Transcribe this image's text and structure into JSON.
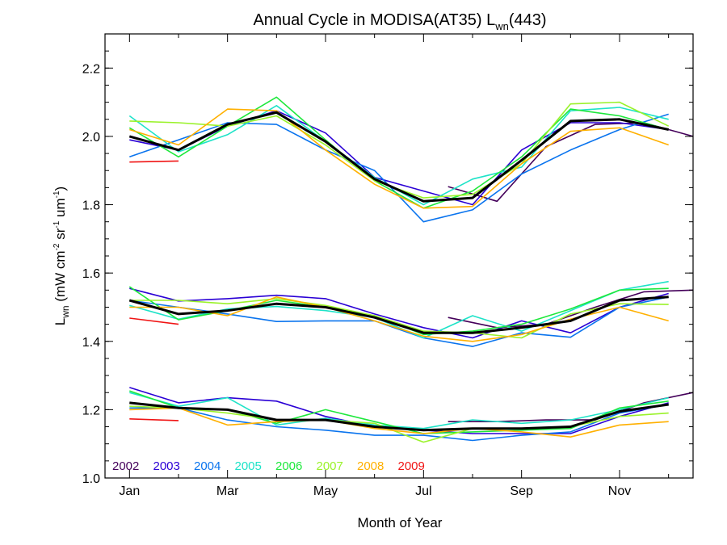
{
  "chart_data": {
    "type": "line",
    "title": "Annual Cycle in MODISA(AT35) L",
    "title_sub": "wn",
    "title_tail": "(443)",
    "xlabel": "Month of Year",
    "ylabel_main": "L",
    "ylabel_sub": "wn",
    "ylabel_units": [
      {
        "t": " (mW cm",
        "s": "normal"
      },
      {
        "t": "-2",
        "s": "super"
      },
      {
        "t": " sr",
        "s": "normal"
      },
      {
        "t": "-1",
        "s": "super"
      },
      {
        "t": " um",
        "s": "normal"
      },
      {
        "t": "-1",
        "s": "super"
      },
      {
        "t": ")",
        "s": "normal"
      }
    ],
    "xlim": [
      0.5,
      12.5
    ],
    "ylim": [
      1.0,
      2.3
    ],
    "x_ticks": [
      {
        "value": 1,
        "label": "Jan"
      },
      {
        "value": 3,
        "label": "Mar"
      },
      {
        "value": 5,
        "label": "May"
      },
      {
        "value": 7,
        "label": "Jul"
      },
      {
        "value": 9,
        "label": "Sep"
      },
      {
        "value": 11,
        "label": "Nov"
      }
    ],
    "x_minor_ticks": [
      2,
      4,
      6,
      8,
      10,
      12
    ],
    "y_ticks": [
      {
        "value": 1.0,
        "label": "1.0"
      },
      {
        "value": 1.2,
        "label": "1.2"
      },
      {
        "value": 1.4,
        "label": "1.4"
      },
      {
        "value": 1.6,
        "label": "1.6"
      },
      {
        "value": 1.8,
        "label": "1.8"
      },
      {
        "value": 2.0,
        "label": "2.0"
      },
      {
        "value": 2.2,
        "label": "2.2"
      }
    ],
    "y_minor_step": 0.05,
    "grid": false,
    "legend_position": "bottom-left",
    "mean_color": "#000000",
    "series": [
      {
        "name": "2002",
        "color": "#44005a",
        "groups": [
          {
            "x": [
              7.5,
              8.5,
              9.5,
              10.5,
              11.5,
              12.5
            ],
            "y": [
              1.853,
              1.81,
              1.97,
              2.035,
              2.04,
              2.0
            ]
          },
          {
            "x": [
              7.5,
              8.5,
              9.5,
              10.5,
              11.5,
              12.5
            ],
            "y": [
              1.47,
              1.44,
              1.45,
              1.5,
              1.545,
              1.55
            ]
          },
          {
            "x": [
              7.5,
              8.5,
              9.5,
              10.5,
              11.5,
              12.5
            ],
            "y": [
              1.165,
              1.165,
              1.17,
              1.17,
              1.22,
              1.25
            ]
          }
        ]
      },
      {
        "name": "2003",
        "color": "#2a00d5",
        "groups": [
          {
            "x": [
              1.0,
              2.0,
              3.0,
              4.0,
              5.0,
              6.0,
              7.0,
              8.0,
              9.0,
              10.0,
              11.0,
              12.0
            ],
            "y": [
              1.99,
              1.96,
              2.03,
              2.075,
              2.01,
              1.88,
              1.84,
              1.8,
              1.96,
              2.04,
              2.04,
              2.02
            ]
          },
          {
            "x": [
              1.0,
              2.0,
              3.0,
              4.0,
              5.0,
              6.0,
              7.0,
              8.0,
              9.0,
              10.0,
              11.0,
              12.0
            ],
            "y": [
              1.555,
              1.518,
              1.525,
              1.535,
              1.525,
              1.48,
              1.44,
              1.41,
              1.46,
              1.425,
              1.5,
              1.54
            ]
          },
          {
            "x": [
              1.0,
              2.0,
              3.0,
              4.0,
              5.0,
              6.0,
              7.0,
              8.0,
              9.0,
              10.0,
              11.0,
              12.0
            ],
            "y": [
              1.265,
              1.22,
              1.235,
              1.225,
              1.18,
              1.15,
              1.14,
              1.13,
              1.13,
              1.13,
              1.18,
              1.22
            ]
          }
        ]
      },
      {
        "name": "2004",
        "color": "#0a74ee",
        "groups": [
          {
            "x": [
              1.0,
              2.0,
              3.0,
              4.0,
              5.0,
              6.0,
              7.0,
              8.0,
              9.0,
              10.0,
              11.0,
              12.0
            ],
            "y": [
              1.94,
              1.99,
              2.04,
              2.035,
              1.96,
              1.9,
              1.75,
              1.785,
              1.89,
              1.96,
              2.02,
              2.065
            ]
          },
          {
            "x": [
              1.0,
              2.0,
              3.0,
              4.0,
              5.0,
              6.0,
              7.0,
              8.0,
              9.0,
              10.0,
              11.0,
              12.0
            ],
            "y": [
              1.52,
              1.5,
              1.48,
              1.458,
              1.46,
              1.46,
              1.41,
              1.385,
              1.425,
              1.412,
              1.5,
              1.53
            ]
          },
          {
            "x": [
              1.0,
              2.0,
              3.0,
              4.0,
              5.0,
              6.0,
              7.0,
              8.0,
              9.0,
              10.0,
              11.0,
              12.0
            ],
            "y": [
              1.205,
              1.205,
              1.17,
              1.15,
              1.14,
              1.125,
              1.125,
              1.11,
              1.125,
              1.135,
              1.19,
              1.215
            ]
          }
        ]
      },
      {
        "name": "2005",
        "color": "#1ee3c8",
        "groups": [
          {
            "x": [
              1.0,
              2.0,
              3.0,
              4.0,
              5.0,
              6.0,
              7.0,
              8.0,
              9.0,
              10.0,
              11.0,
              12.0
            ],
            "y": [
              2.06,
              1.955,
              2.005,
              2.09,
              1.985,
              1.88,
              1.8,
              1.875,
              1.91,
              2.075,
              2.085,
              2.05
            ]
          },
          {
            "x": [
              1.0,
              2.0,
              3.0,
              4.0,
              5.0,
              6.0,
              7.0,
              8.0,
              9.0,
              10.0,
              11.0,
              12.0
            ],
            "y": [
              1.505,
              1.465,
              1.495,
              1.502,
              1.49,
              1.47,
              1.41,
              1.475,
              1.43,
              1.49,
              1.55,
              1.575
            ]
          },
          {
            "x": [
              1.0,
              2.0,
              3.0,
              4.0,
              5.0,
              6.0,
              7.0,
              8.0,
              9.0,
              10.0,
              11.0,
              12.0
            ],
            "y": [
              1.25,
              1.21,
              1.235,
              1.155,
              1.175,
              1.155,
              1.145,
              1.17,
              1.16,
              1.17,
              1.2,
              1.235
            ]
          }
        ]
      },
      {
        "name": "2006",
        "color": "#1ee83c",
        "groups": [
          {
            "x": [
              1.0,
              2.0,
              3.0,
              4.0,
              5.0,
              6.0,
              7.0,
              8.0,
              9.0,
              10.0,
              11.0,
              12.0
            ],
            "y": [
              2.025,
              1.94,
              2.03,
              2.115,
              1.99,
              1.87,
              1.79,
              1.84,
              1.94,
              2.08,
              2.06,
              2.02
            ]
          },
          {
            "x": [
              1.0,
              2.0,
              3.0,
              4.0,
              5.0,
              6.0,
              7.0,
              8.0,
              9.0,
              10.0,
              11.0,
              12.0
            ],
            "y": [
              1.56,
              1.463,
              1.49,
              1.52,
              1.5,
              1.475,
              1.42,
              1.43,
              1.45,
              1.495,
              1.55,
              1.555
            ]
          },
          {
            "x": [
              1.0,
              2.0,
              3.0,
              4.0,
              5.0,
              6.0,
              7.0,
              8.0,
              9.0,
              10.0,
              11.0,
              12.0
            ],
            "y": [
              1.255,
              1.205,
              1.2,
              1.16,
              1.2,
              1.165,
              1.13,
              1.135,
              1.14,
              1.145,
              1.205,
              1.225
            ]
          }
        ]
      },
      {
        "name": "2007",
        "color": "#9af22a",
        "groups": [
          {
            "x": [
              1.0,
              2.0,
              3.0,
              4.0,
              5.0,
              6.0,
              7.0,
              8.0,
              9.0,
              10.0,
              11.0,
              12.0
            ],
            "y": [
              2.045,
              2.04,
              2.03,
              2.06,
              1.975,
              1.87,
              1.82,
              1.83,
              1.92,
              2.095,
              2.1,
              2.03
            ]
          },
          {
            "x": [
              1.0,
              2.0,
              3.0,
              4.0,
              5.0,
              6.0,
              7.0,
              8.0,
              9.0,
              10.0,
              11.0,
              12.0
            ],
            "y": [
              1.52,
              1.52,
              1.51,
              1.525,
              1.505,
              1.475,
              1.43,
              1.425,
              1.41,
              1.48,
              1.51,
              1.508
            ]
          },
          {
            "x": [
              1.0,
              2.0,
              3.0,
              4.0,
              5.0,
              6.0,
              7.0,
              8.0,
              9.0,
              10.0,
              11.0,
              12.0
            ],
            "y": [
              1.21,
              1.205,
              1.19,
              1.17,
              1.17,
              1.16,
              1.105,
              1.145,
              1.145,
              1.15,
              1.18,
              1.19
            ]
          }
        ]
      },
      {
        "name": "2008",
        "color": "#ffb000",
        "groups": [
          {
            "x": [
              1.0,
              2.0,
              3.0,
              4.0,
              5.0,
              6.0,
              7.0,
              8.0,
              9.0,
              10.0,
              11.0,
              12.0
            ],
            "y": [
              2.02,
              1.975,
              2.08,
              2.075,
              1.96,
              1.86,
              1.79,
              1.795,
              1.92,
              2.015,
              2.025,
              1.975
            ]
          },
          {
            "x": [
              1.0,
              2.0,
              3.0,
              4.0,
              5.0,
              6.0,
              7.0,
              8.0,
              9.0,
              10.0,
              11.0,
              12.0
            ],
            "y": [
              1.5,
              1.5,
              1.475,
              1.53,
              1.5,
              1.46,
              1.415,
              1.4,
              1.42,
              1.465,
              1.5,
              1.46
            ]
          },
          {
            "x": [
              1.0,
              2.0,
              3.0,
              4.0,
              5.0,
              6.0,
              7.0,
              8.0,
              9.0,
              10.0,
              11.0,
              12.0
            ],
            "y": [
              1.2,
              1.205,
              1.155,
              1.165,
              1.17,
              1.145,
              1.13,
              1.145,
              1.135,
              1.12,
              1.155,
              1.165
            ]
          }
        ]
      },
      {
        "name": "2009",
        "color": "#f01414",
        "groups": [
          {
            "x": [
              1.0,
              2.0
            ],
            "y": [
              1.925,
              1.928
            ]
          },
          {
            "x": [
              1.0,
              2.0
            ],
            "y": [
              1.468,
              1.45
            ]
          },
          {
            "x": [
              1.0,
              2.0
            ],
            "y": [
              1.173,
              1.168
            ]
          }
        ]
      }
    ],
    "mean": {
      "name": "",
      "groups": [
        {
          "x": [
            1.0,
            2.0,
            3.0,
            4.0,
            5.0,
            6.0,
            7.0,
            8.0,
            9.0,
            10.0,
            11.0,
            12.0
          ],
          "y": [
            2.0,
            1.96,
            2.035,
            2.07,
            1.985,
            1.875,
            1.81,
            1.82,
            1.93,
            2.045,
            2.05,
            2.02
          ]
        },
        {
          "x": [
            1.0,
            2.0,
            3.0,
            4.0,
            5.0,
            6.0,
            7.0,
            8.0,
            9.0,
            10.0,
            11.0,
            12.0
          ],
          "y": [
            1.52,
            1.48,
            1.49,
            1.51,
            1.5,
            1.47,
            1.425,
            1.425,
            1.44,
            1.46,
            1.52,
            1.53
          ]
        },
        {
          "x": [
            1.0,
            2.0,
            3.0,
            4.0,
            5.0,
            6.0,
            7.0,
            8.0,
            9.0,
            10.0,
            11.0,
            12.0
          ],
          "y": [
            1.22,
            1.205,
            1.2,
            1.17,
            1.17,
            1.15,
            1.14,
            1.145,
            1.145,
            1.15,
            1.195,
            1.215
          ]
        }
      ]
    }
  }
}
